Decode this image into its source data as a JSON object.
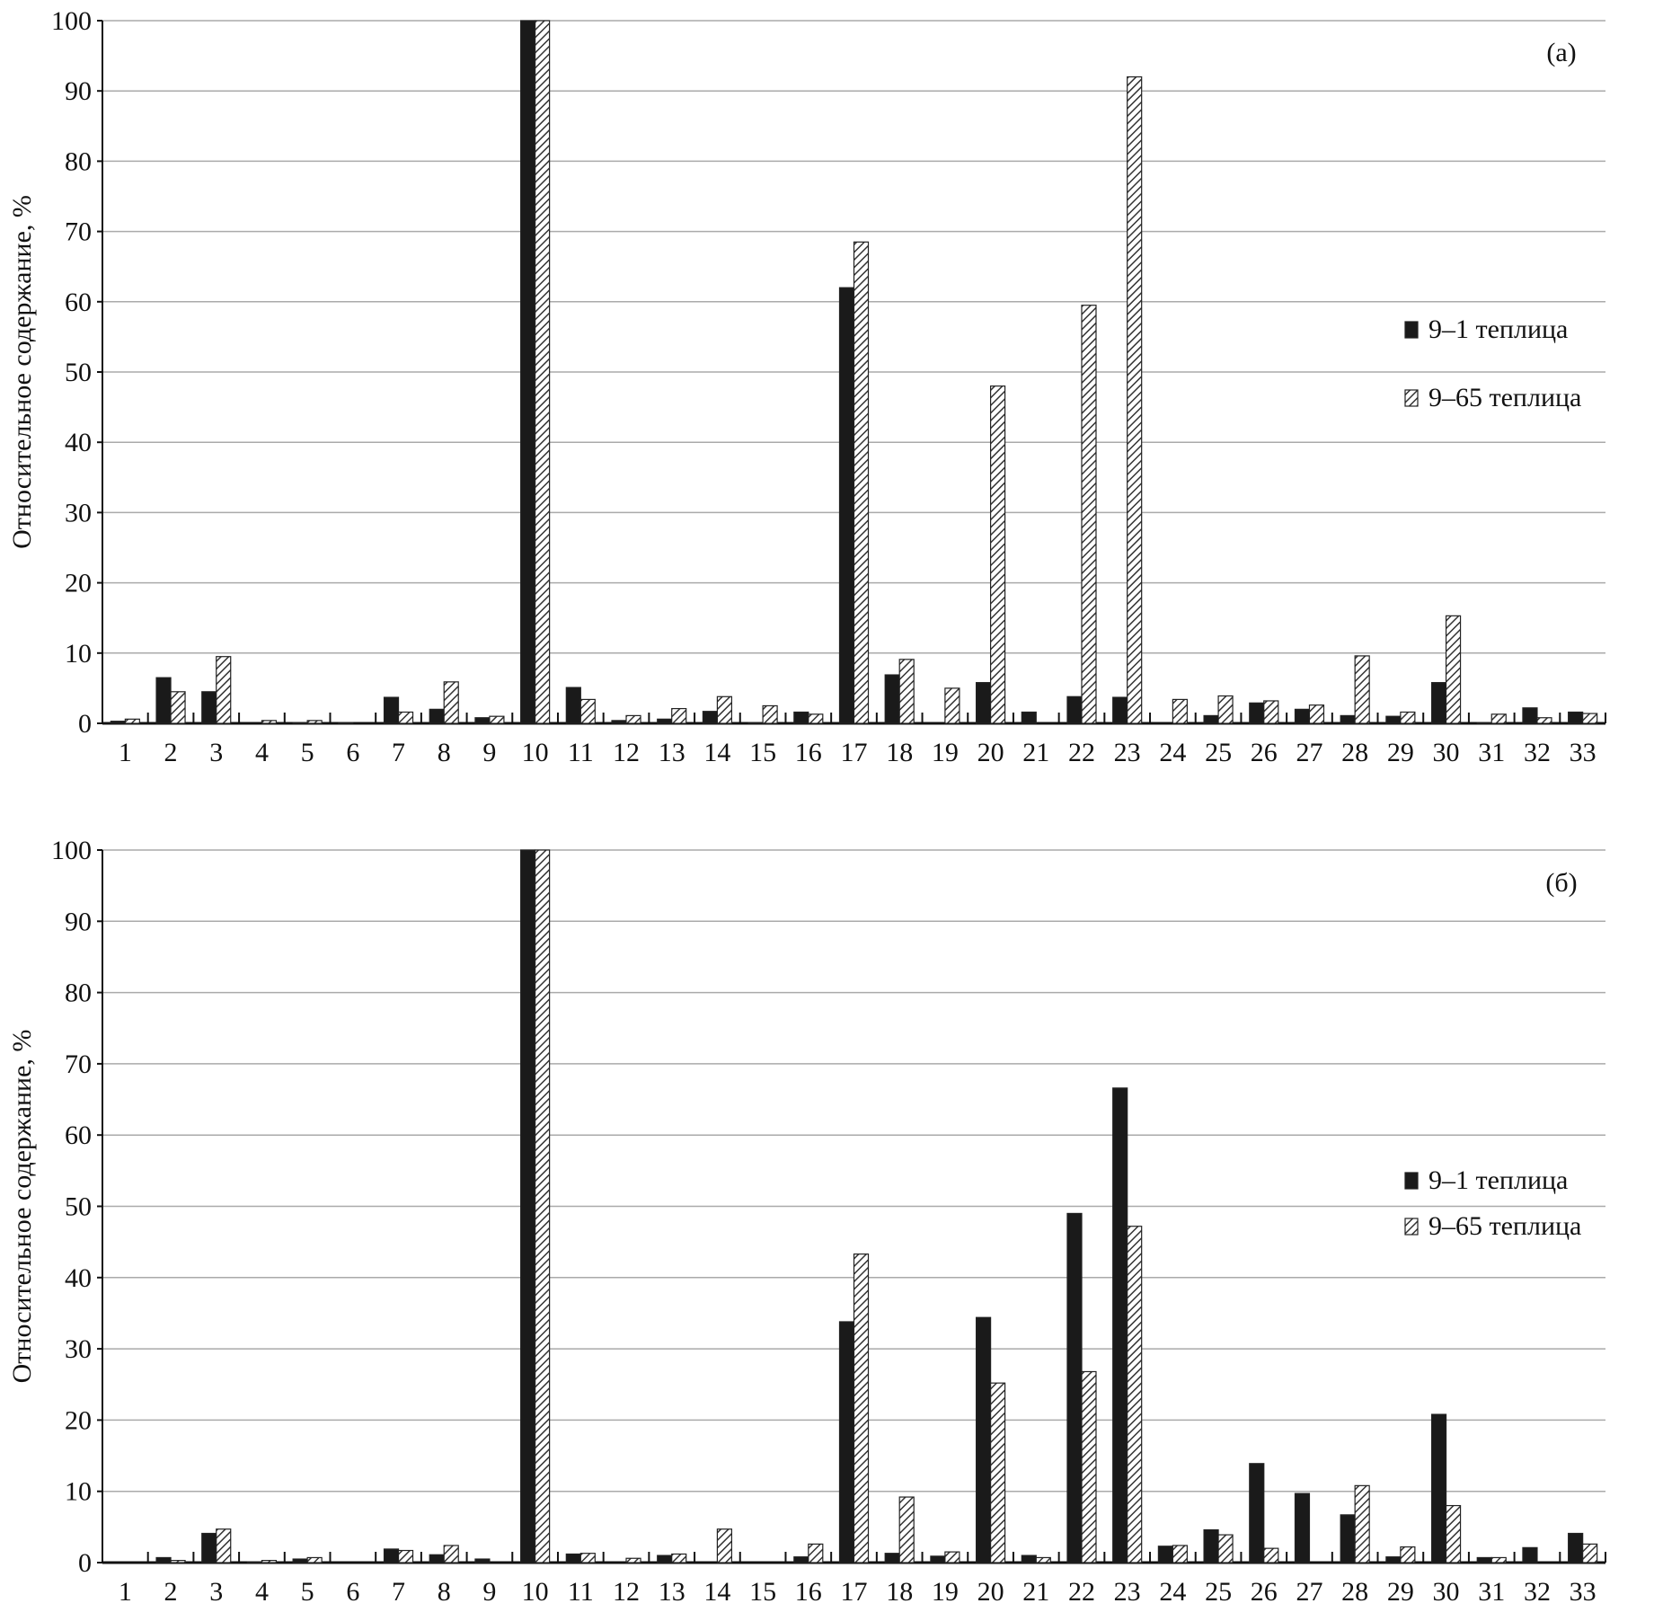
{
  "chart_data": [
    {
      "type": "bar",
      "panel_label": "(а)",
      "ylabel": "Относительное содержание, %",
      "xlabel": "",
      "ylim": [
        0,
        100
      ],
      "yticks": [
        0,
        10,
        20,
        30,
        40,
        50,
        60,
        70,
        80,
        90,
        100
      ],
      "grid": true,
      "legend_position": "right",
      "categories": [
        "1",
        "2",
        "3",
        "4",
        "5",
        "6",
        "7",
        "8",
        "9",
        "10",
        "11",
        "12",
        "13",
        "14",
        "15",
        "16",
        "17",
        "18",
        "19",
        "20",
        "21",
        "22",
        "23",
        "24",
        "25",
        "26",
        "27",
        "28",
        "29",
        "30",
        "31",
        "32",
        "33"
      ],
      "series": [
        {
          "name": "9–1 теплица",
          "style": "solid",
          "color": "#1a1a1a",
          "values": [
            0.3,
            6.5,
            4.5,
            0,
            0.1,
            0.1,
            3.7,
            2.0,
            0.8,
            100,
            5.1,
            0.4,
            0.6,
            1.7,
            0.1,
            1.6,
            62,
            6.9,
            0,
            5.8,
            1.6,
            3.8,
            3.7,
            0,
            1.1,
            2.9,
            2.0,
            1.1,
            1.0,
            5.8,
            0.1,
            2.2,
            1.6
          ]
        },
        {
          "name": "9–65 теплица",
          "style": "hatched",
          "color": "#555555",
          "values": [
            0.6,
            4.5,
            9.5,
            0.4,
            0.4,
            0,
            1.6,
            5.9,
            1.0,
            100,
            3.4,
            1.1,
            2.1,
            3.8,
            2.5,
            1.3,
            68.5,
            9.1,
            5.0,
            48,
            0,
            59.5,
            92,
            3.4,
            3.9,
            3.2,
            2.6,
            9.6,
            1.6,
            15.3,
            1.3,
            0.8,
            1.4
          ]
        }
      ]
    },
    {
      "type": "bar",
      "panel_label": "(б)",
      "ylabel": "Относительное содержание, %",
      "xlabel": "",
      "ylim": [
        0,
        100
      ],
      "yticks": [
        0,
        10,
        20,
        30,
        40,
        50,
        60,
        70,
        80,
        90,
        100
      ],
      "grid": true,
      "legend_position": "right",
      "categories": [
        "1",
        "2",
        "3",
        "4",
        "5",
        "6",
        "7",
        "8",
        "9",
        "10",
        "11",
        "12",
        "13",
        "14",
        "15",
        "16",
        "17",
        "18",
        "19",
        "20",
        "21",
        "22",
        "23",
        "24",
        "25",
        "26",
        "27",
        "28",
        "29",
        "30",
        "31",
        "32",
        "33"
      ],
      "series": [
        {
          "name": "9–1 теплица",
          "style": "solid",
          "color": "#1a1a1a",
          "values": [
            0,
            0.7,
            4.1,
            0.1,
            0.5,
            0,
            1.9,
            1.1,
            0.5,
            100,
            1.2,
            0,
            1.0,
            0,
            0,
            0.8,
            33.8,
            1.3,
            0.9,
            34.4,
            1.0,
            49,
            66.6,
            2.3,
            4.6,
            13.9,
            9.7,
            6.7,
            0.8,
            20.8,
            0.7,
            2.1,
            4.1
          ]
        },
        {
          "name": "9–65 теплица",
          "style": "hatched",
          "color": "#555555",
          "values": [
            0,
            0.3,
            4.7,
            0.3,
            0.7,
            0,
            1.7,
            2.4,
            0,
            100,
            1.3,
            0.6,
            1.2,
            4.7,
            0,
            2.6,
            43.3,
            9.2,
            1.5,
            25.2,
            0.7,
            26.8,
            47.2,
            2.4,
            3.9,
            2.0,
            0,
            10.8,
            2.2,
            8.0,
            0.7,
            0,
            2.6
          ]
        }
      ]
    }
  ]
}
